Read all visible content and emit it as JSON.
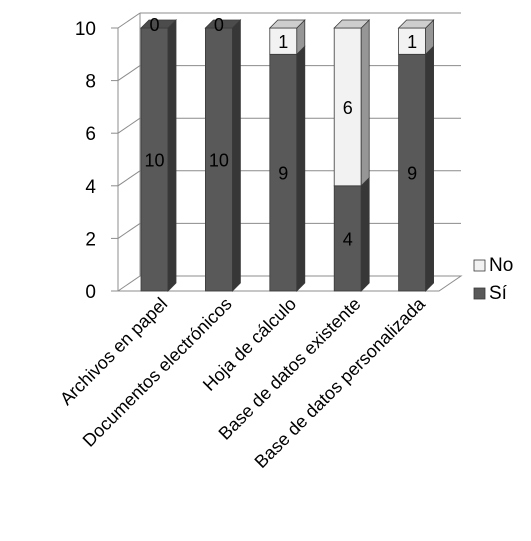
{
  "chart_data": {
    "type": "bar",
    "stacked": true,
    "style": "3d",
    "categories": [
      "Archivos en papel",
      "Documentos electrónicos",
      "Hoja de cálculo",
      "Base de datos existente",
      "Base de datos personalizada"
    ],
    "series": [
      {
        "name": "Sí",
        "values": [
          10,
          10,
          9,
          4,
          9
        ],
        "color": "#595959"
      },
      {
        "name": "No",
        "values": [
          0,
          0,
          1,
          6,
          1
        ],
        "color": "#f2f2f2"
      }
    ],
    "ylim": [
      0,
      10
    ],
    "yticks": [
      "0",
      "2",
      "4",
      "6",
      "8",
      "10"
    ],
    "grid": true,
    "legend": "right"
  }
}
